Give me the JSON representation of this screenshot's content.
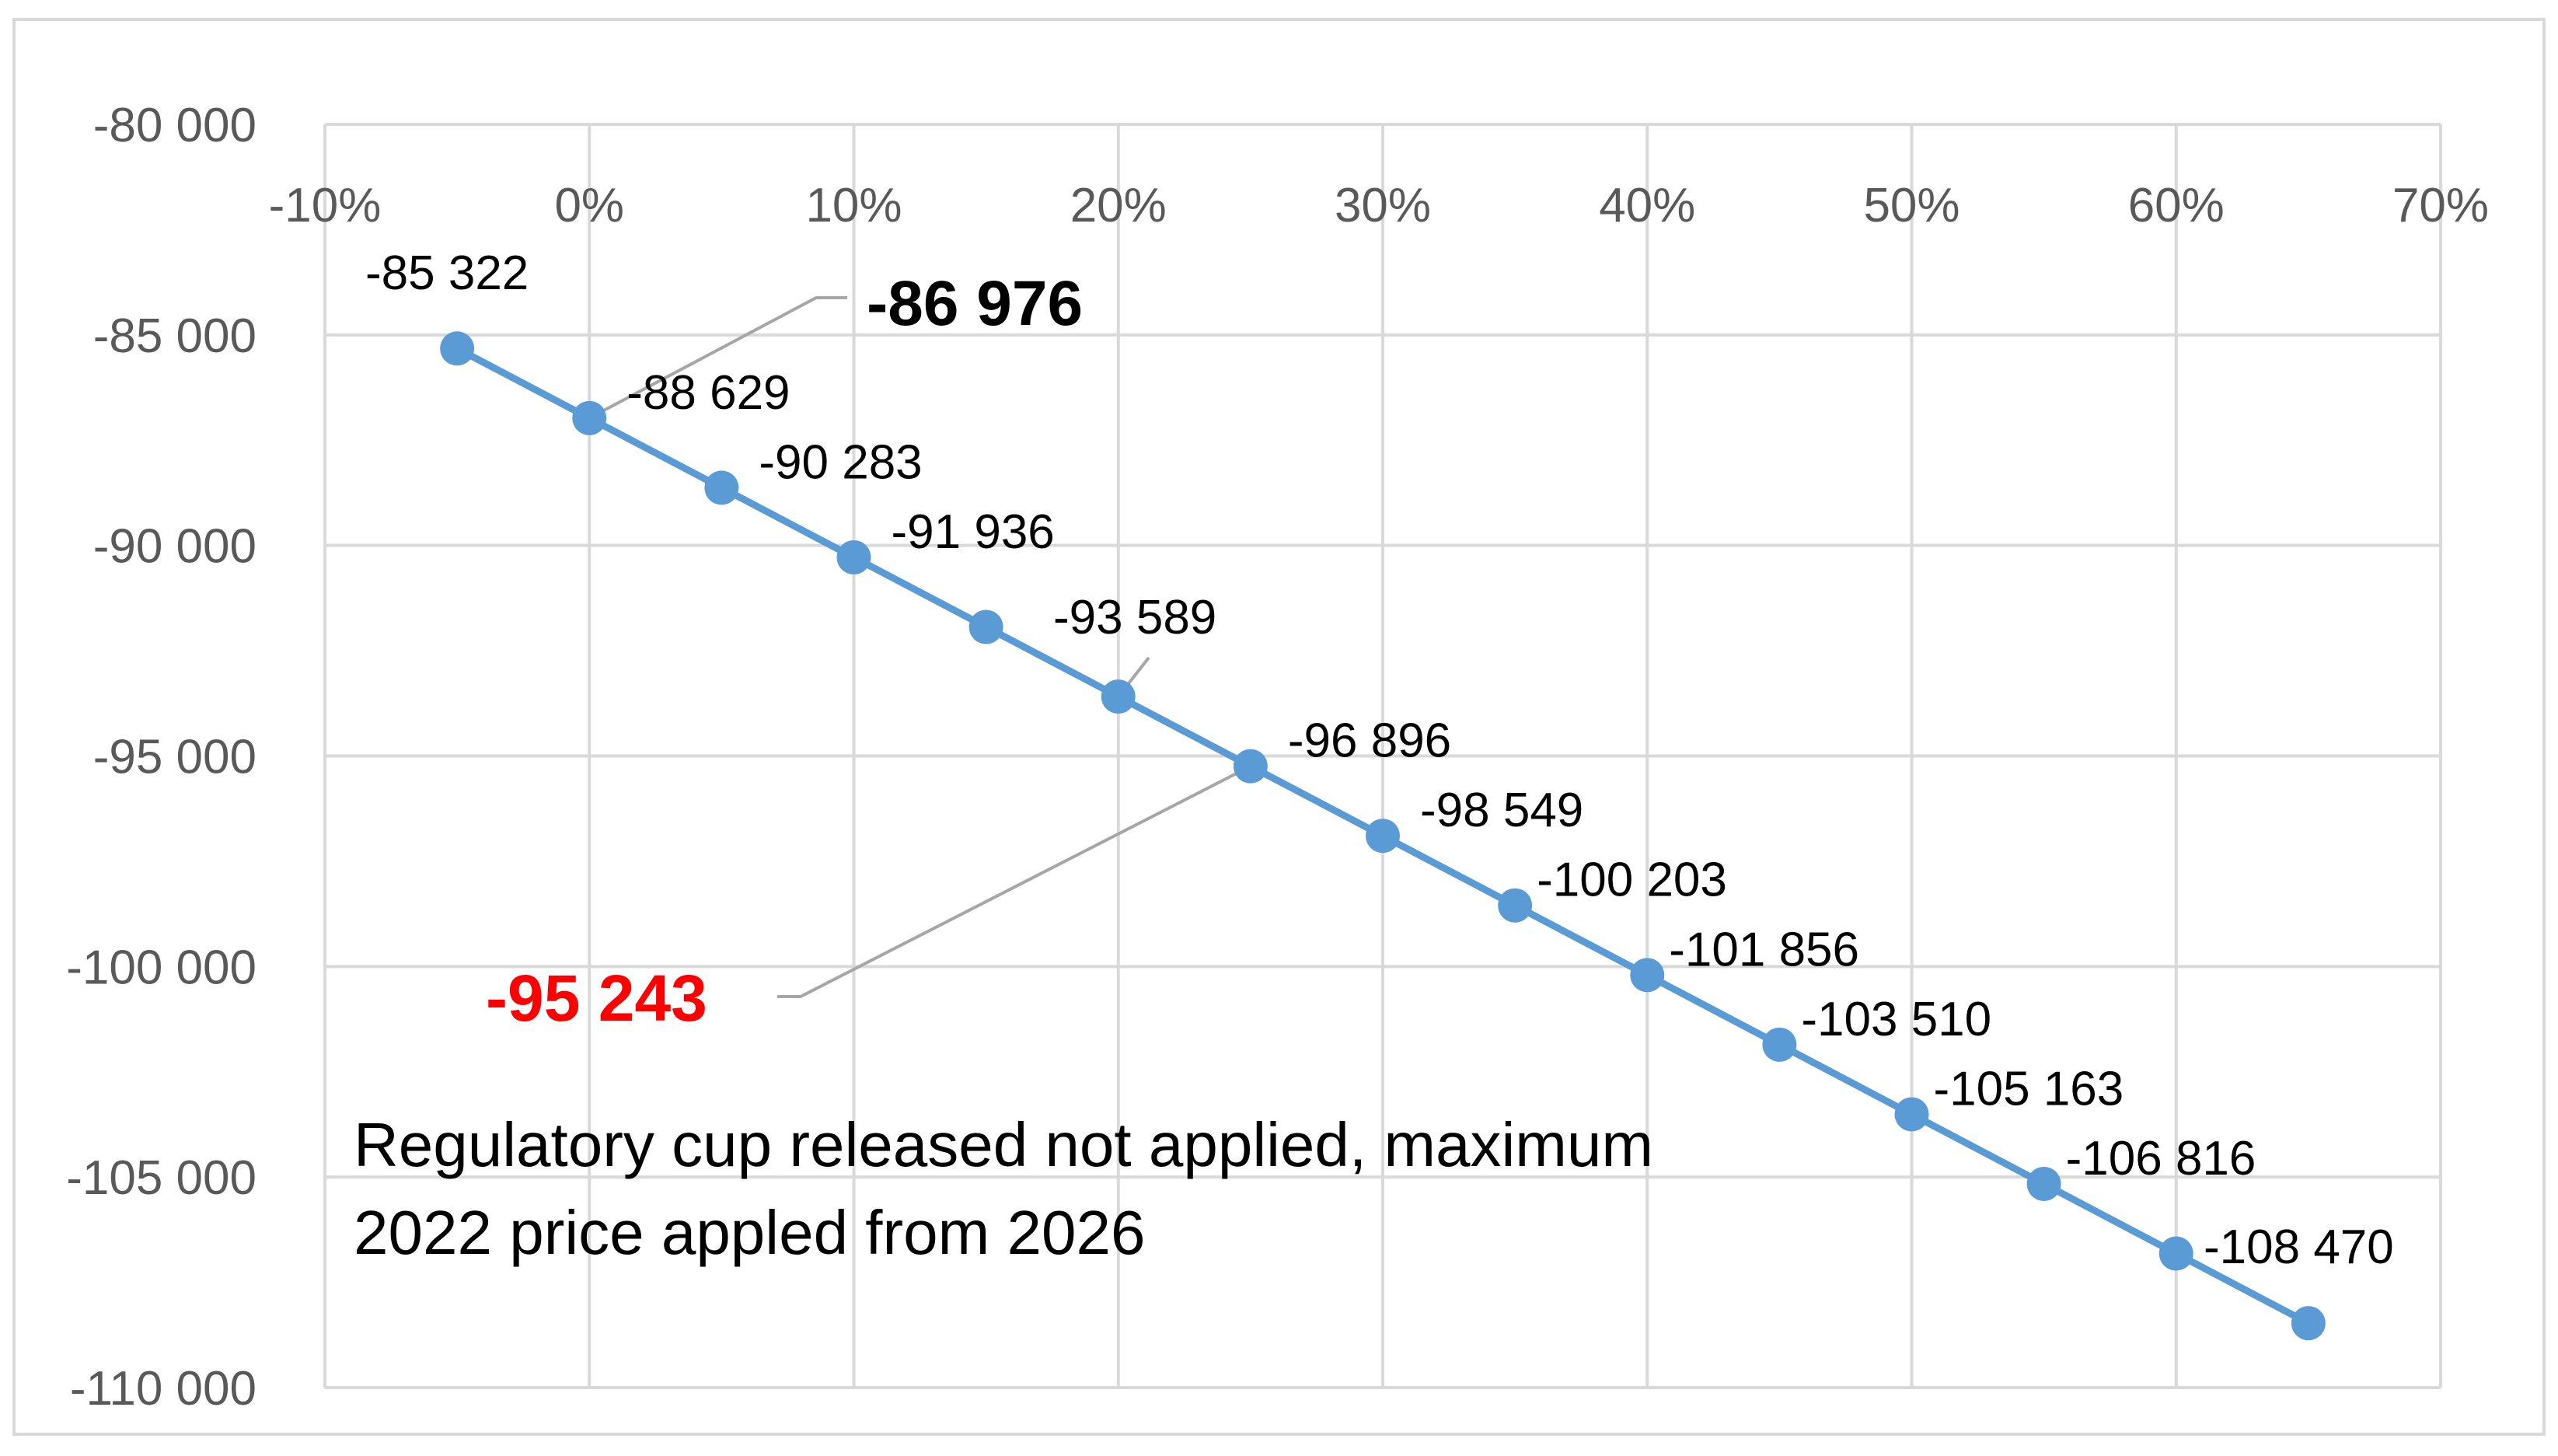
{
  "chart_data": {
    "type": "line",
    "title": "",
    "xlabel": "",
    "ylabel": "",
    "x_axis": {
      "range": [
        -0.1,
        0.7
      ],
      "ticks": [
        -0.1,
        0.0,
        0.1,
        0.2,
        0.3,
        0.4,
        0.5,
        0.6,
        0.7
      ],
      "tick_labels": [
        "-10%",
        "0%",
        "10%",
        "20%",
        "30%",
        "40%",
        "50%",
        "60%",
        "70%"
      ],
      "position": "top"
    },
    "y_axis": {
      "range": [
        -110000,
        -80000
      ],
      "ticks": [
        -80000,
        -85000,
        -90000,
        -95000,
        -100000,
        -105000,
        -110000
      ],
      "tick_labels": [
        "-80 000",
        "-85 000",
        "-90 000",
        "-95 000",
        "-100 000",
        "-105 000",
        "-110 000"
      ]
    },
    "grid": true,
    "series": [
      {
        "color": "#5B9BD5",
        "x": [
          -0.05,
          0.0,
          0.05,
          0.1,
          0.15,
          0.2,
          0.25,
          0.3,
          0.35,
          0.4,
          0.45,
          0.5,
          0.55,
          0.6,
          0.65
        ],
        "values": [
          -85322,
          -86976,
          -88629,
          -90283,
          -91936,
          -93589,
          -95243,
          -96896,
          -98549,
          -100203,
          -101856,
          -103510,
          -105163,
          -106816,
          -108470
        ],
        "labels": [
          "-85 322",
          "-86 976",
          "-88 629",
          "-90 283",
          "-91 936",
          "-93 589",
          "-95 243",
          "-96 896",
          "-98 549",
          "-100 203",
          "-101 856",
          "-103 510",
          "-105 163",
          "-106 816",
          "-108 470"
        ]
      }
    ],
    "annotation": "Regulatory cup released not applied, maximum 2022 price appled from 2026",
    "highlight_colors": {
      "default_label": "#000000",
      "emphasis_label": "#000000",
      "red_label": "#FF0000",
      "leader_line": "#A6A6A6",
      "grid": "#D9D9D9"
    }
  }
}
